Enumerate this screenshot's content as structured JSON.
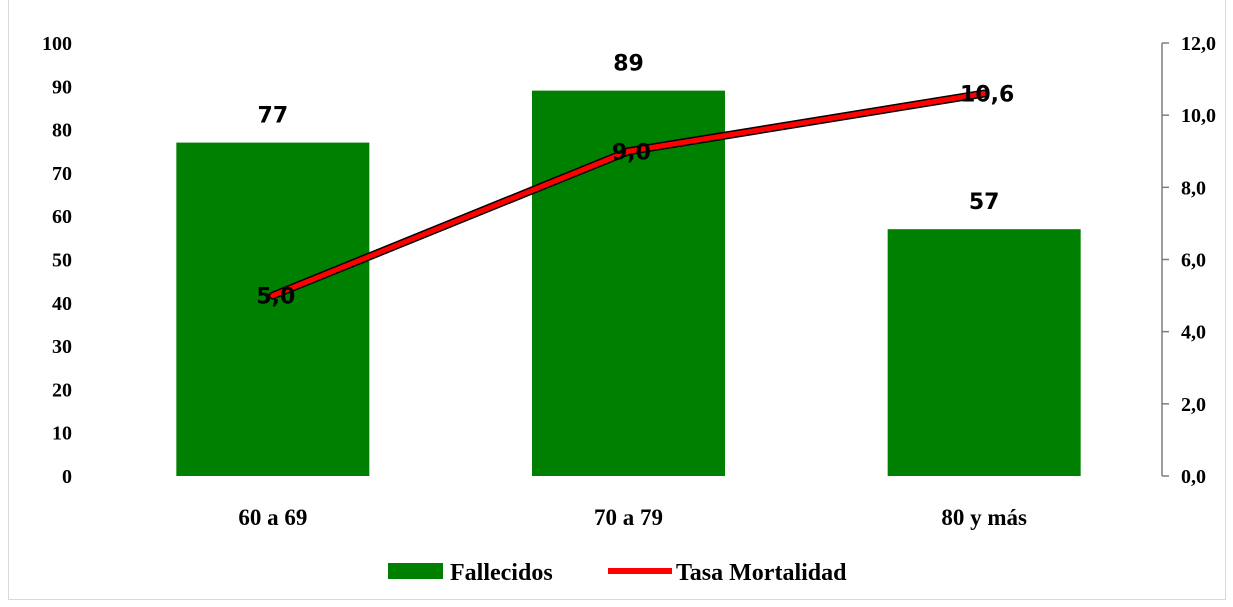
{
  "chart_data": {
    "type": "bar",
    "categories": [
      "60 a 69",
      "70 a 79",
      "80 y más"
    ],
    "series": [
      {
        "name": "Fallecidos",
        "type": "bar",
        "axis": "left",
        "values": [
          77,
          89,
          57
        ],
        "labels": [
          "77",
          "89",
          "57"
        ],
        "color": "#008000"
      },
      {
        "name": "Tasa Mortalidad",
        "type": "line",
        "axis": "right",
        "values": [
          5.0,
          9.0,
          10.6
        ],
        "labels": [
          "5,0",
          "9,0",
          "10,6"
        ],
        "color": "#ff0000"
      }
    ],
    "ylim_left": [
      0,
      100
    ],
    "ylim_right": [
      0,
      12
    ],
    "left_ticks": [
      "0",
      "10",
      "20",
      "30",
      "40",
      "50",
      "60",
      "70",
      "80",
      "90",
      "100"
    ],
    "right_ticks": [
      "0,0",
      "2,0",
      "4,0",
      "6,0",
      "8,0",
      "10,0",
      "12,0"
    ],
    "legend_position": "bottom",
    "grid": false
  }
}
